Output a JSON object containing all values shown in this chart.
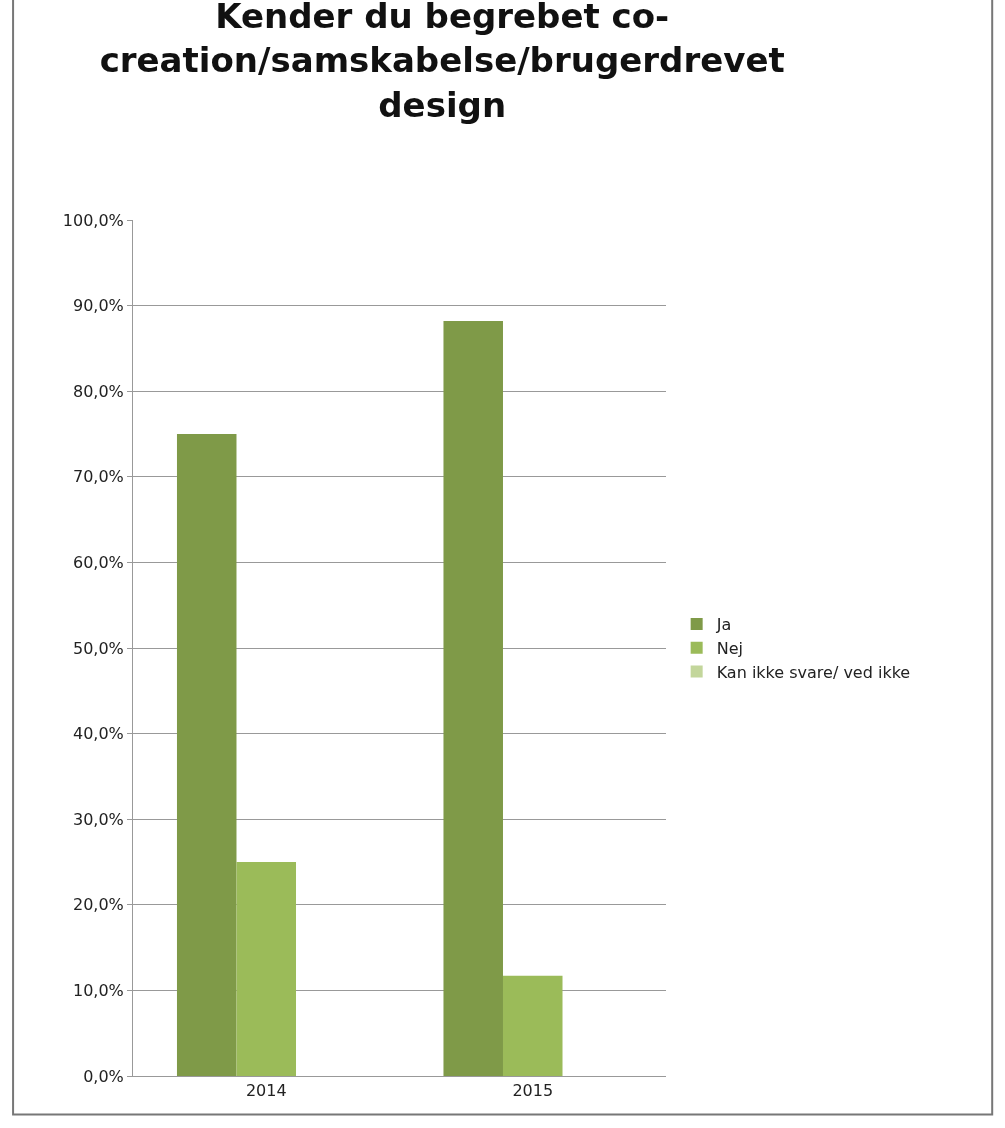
{
  "chart_data": {
    "type": "bar",
    "title": "Kender du begrebet co-\ncreation/samskabelse/brugerdrevet\ndesign",
    "categories": [
      "2014",
      "2015"
    ],
    "series": [
      {
        "name": "Ja",
        "color": "#7f9a48",
        "values": [
          75,
          88.2
        ]
      },
      {
        "name": "Nej",
        "color": "#9bbb59",
        "values": [
          25,
          11.7
        ]
      },
      {
        "name": "Kan ikke svare/ ved ikke",
        "color": "#c3d69b",
        "values": [
          0,
          0
        ]
      }
    ],
    "ylim": [
      0,
      100
    ],
    "yticks": [
      {
        "value": 0,
        "label": "0,0%"
      },
      {
        "value": 10,
        "label": "10,0%"
      },
      {
        "value": 20,
        "label": "20,0%"
      },
      {
        "value": 30,
        "label": "30,0%"
      },
      {
        "value": 40,
        "label": "40,0%"
      },
      {
        "value": 50,
        "label": "50,0%"
      },
      {
        "value": 60,
        "label": "60,0%"
      },
      {
        "value": 70,
        "label": "70,0%"
      },
      {
        "value": 80,
        "label": "80,0%"
      },
      {
        "value": 90,
        "label": "90,0%"
      },
      {
        "value": 100,
        "label": "100,0%"
      }
    ],
    "grid": "y",
    "legend": "right"
  }
}
